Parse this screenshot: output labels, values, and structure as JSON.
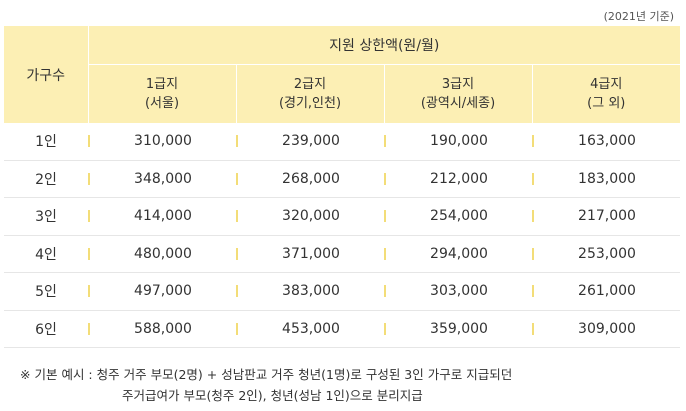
{
  "base_note": "(2021년 기준)",
  "header": {
    "household_label": "가구수",
    "group_label": "지원 상한액(원/월)",
    "grades": [
      {
        "line1": "1급지",
        "line2": "(서울)"
      },
      {
        "line1": "2급지",
        "line2": "(경기,인천)"
      },
      {
        "line1": "3급지",
        "line2": "(광역시/세종)"
      },
      {
        "line1": "4급지",
        "line2": "(그 외)"
      }
    ]
  },
  "rows": [
    {
      "household": "1인",
      "values": [
        "310,000",
        "239,000",
        "190,000",
        "163,000"
      ]
    },
    {
      "household": "2인",
      "values": [
        "348,000",
        "268,000",
        "212,000",
        "183,000"
      ]
    },
    {
      "household": "3인",
      "values": [
        "414,000",
        "320,000",
        "254,000",
        "217,000"
      ]
    },
    {
      "household": "4인",
      "values": [
        "480,000",
        "371,000",
        "294,000",
        "253,000"
      ]
    },
    {
      "household": "5인",
      "values": [
        "497,000",
        "383,000",
        "303,000",
        "261,000"
      ]
    },
    {
      "household": "6인",
      "values": [
        "588,000",
        "453,000",
        "359,000",
        "309,000"
      ]
    }
  ],
  "footnote": {
    "mark": "※",
    "label": "기본 예시 :",
    "line1": "청주 거주 부모(2명) + 성남판교 거주 청년(1명)로 구성된 3인 가구로 지급되던",
    "line2": "주거급여가 부모(청주 2인), 청년(성남 1인)으로 분리지급"
  },
  "colors": {
    "header_bg": "#fcefb4",
    "separator": "#f3dd78",
    "row_line": "#e6e6e6"
  }
}
